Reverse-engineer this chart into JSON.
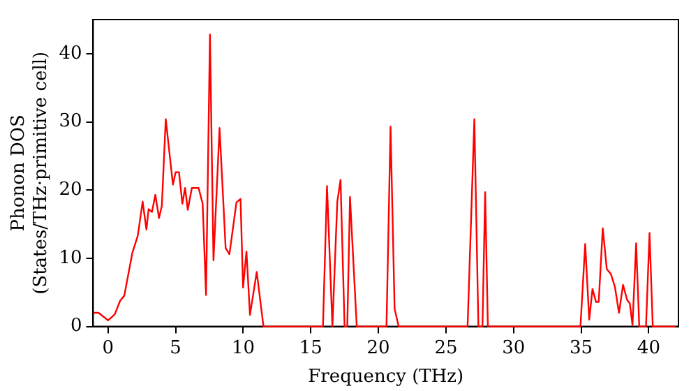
{
  "chart_data": {
    "type": "line",
    "xlabel": "Frequency (THz)",
    "ylabel": "Phonon DOS\n(States/THz·primitive cell)",
    "xlim": [
      -1.1,
      42.2
    ],
    "ylim": [
      0,
      45
    ],
    "xticks": [
      0,
      5,
      10,
      15,
      20,
      25,
      30,
      35,
      40
    ],
    "yticks": [
      0,
      10,
      20,
      30,
      40
    ],
    "grid": false,
    "legend": false,
    "marker": "none",
    "line_style": "solid",
    "series": [
      {
        "color": "#ff0000",
        "x": [
          -1.07,
          -0.7,
          0,
          0.5,
          0.9,
          1.2,
          1.8,
          2.2,
          2.56,
          2.84,
          3.0,
          3.25,
          3.5,
          3.77,
          3.98,
          4.27,
          4.8,
          5.0,
          5.25,
          5.5,
          5.7,
          5.9,
          6.2,
          6.7,
          7.0,
          7.25,
          7.54,
          7.8,
          8.25,
          8.7,
          8.98,
          9.5,
          9.8,
          9.99,
          10.24,
          10.5,
          11.0,
          11.5,
          15.9,
          16.2,
          16.6,
          16.96,
          17.2,
          17.5,
          17.7,
          17.9,
          18.4,
          20.6,
          20.9,
          21.2,
          21.5,
          26.6,
          27.1,
          27.4,
          27.7,
          27.9,
          28.1,
          34.95,
          35.3,
          35.6,
          35.84,
          36.1,
          36.3,
          36.6,
          36.9,
          37.2,
          37.5,
          37.8,
          38.1,
          38.4,
          38.6,
          38.8,
          39.07,
          39.3,
          39.8,
          40.06,
          40.3,
          42.0
        ],
        "values": [
          2.0,
          2.0,
          0.9,
          1.8,
          3.8,
          4.5,
          10.8,
          13.3,
          18.3,
          14.2,
          17.2,
          16.8,
          19.3,
          15.9,
          17.7,
          30.4,
          20.8,
          22.6,
          22.6,
          18,
          20.3,
          17.1,
          20.3,
          20.3,
          18,
          4.6,
          42.8,
          9.7,
          29.1,
          11.5,
          10.6,
          18.2,
          18.7,
          5.7,
          11.0,
          1.7,
          8.0,
          0,
          0,
          20.6,
          0,
          18.3,
          21.5,
          0,
          0,
          19.0,
          0,
          0,
          29.3,
          2.6,
          0,
          0,
          30.4,
          0,
          0,
          19.7,
          0,
          0,
          12.1,
          1,
          5.5,
          3.6,
          3.6,
          14.4,
          8.4,
          7.7,
          5.8,
          2,
          6.1,
          3.9,
          3.4,
          0.2,
          12.2,
          0,
          0,
          13.7,
          0,
          0
        ]
      }
    ]
  }
}
